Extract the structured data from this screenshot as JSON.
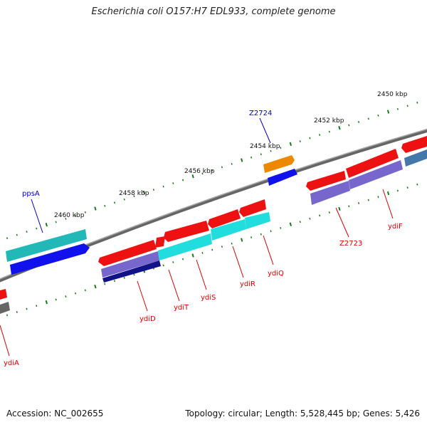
{
  "title": "Escherichia coli O157:H7 EDL933, complete genome",
  "footer": {
    "accession": "Accession: NC_002655",
    "info": "Topology: circular; Length: 5,528,445 bp; Genes: 5,426"
  },
  "scale_labels": [
    "2450 kbp",
    "2452 kbp",
    "2454 kbp",
    "2456 kbp",
    "2458 kbp",
    "2460 kbp"
  ],
  "gene_labels": [
    {
      "text": "Z2724",
      "color": "#0000cc"
    },
    {
      "text": "ppsA",
      "color": "#0000cc"
    },
    {
      "text": "Z2723",
      "color": "#dd0000"
    },
    {
      "text": "ydiF",
      "color": "#dd0000"
    },
    {
      "text": "ydiQ",
      "color": "#dd0000"
    },
    {
      "text": "ydiR",
      "color": "#dd0000"
    },
    {
      "text": "ydiS",
      "color": "#dd0000"
    },
    {
      "text": "ydiT",
      "color": "#dd0000"
    },
    {
      "text": "ydiD",
      "color": "#dd0000"
    },
    {
      "text": "ydiA",
      "color": "#dd0000"
    }
  ],
  "colors": {
    "backbone": "#808080",
    "tick": "#1a7a1a",
    "red_gene": "#ee1111",
    "cyan_gene": "#22dddd",
    "teal_gene": "#22b8b8",
    "blue_gene": "#1111ee",
    "purple_gene": "#7766cc",
    "orange_gene": "#ee8800",
    "navy_gene": "#111188",
    "steel_gene": "#4477aa",
    "gray_gene": "#666666"
  }
}
